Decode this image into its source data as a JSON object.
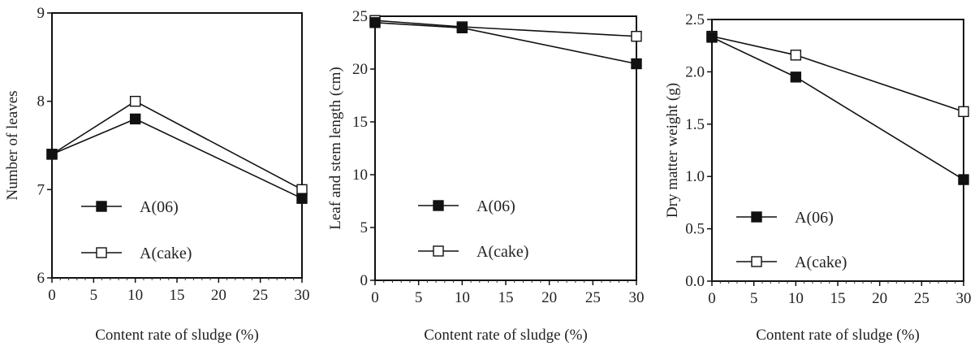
{
  "chart_data": [
    {
      "type": "line",
      "x": [
        0,
        10,
        30
      ],
      "xlim": [
        0,
        30
      ],
      "xticks": [
        "0",
        "5",
        "10",
        "15",
        "20",
        "25",
        "30"
      ],
      "xtick_values": [
        0,
        5,
        10,
        15,
        20,
        25,
        30
      ],
      "ylim": [
        6,
        9
      ],
      "yticks": [
        "6",
        "7",
        "8",
        "9"
      ],
      "ytick_values": [
        6,
        7,
        8,
        9
      ],
      "xlabel": "Content rate of sludge (%)",
      "ylabel": "Number of leaves",
      "legend_position": "bottom-left",
      "series": [
        {
          "name": "A(06)",
          "values": [
            7.4,
            7.8,
            6.9
          ],
          "marker": "filled-square"
        },
        {
          "name": "A(cake)",
          "values": [
            7.4,
            8.0,
            7.0
          ],
          "marker": "open-square"
        }
      ]
    },
    {
      "type": "line",
      "x": [
        0,
        10,
        30
      ],
      "xlim": [
        0,
        30
      ],
      "xticks": [
        "0",
        "5",
        "10",
        "15",
        "20",
        "25",
        "30"
      ],
      "xtick_values": [
        0,
        5,
        10,
        15,
        20,
        25,
        30
      ],
      "ylim": [
        0,
        25
      ],
      "yticks": [
        "0",
        "5",
        "10",
        "15",
        "20",
        "25"
      ],
      "ytick_values": [
        0,
        5,
        10,
        15,
        20,
        25
      ],
      "xlabel": "Content rate of sludge (%)",
      "ylabel": "Leaf and stem length (cm)",
      "legend_position": "bottom-left",
      "series": [
        {
          "name": "A(06)",
          "values": [
            24.4,
            23.9,
            20.5
          ],
          "marker": "filled-square"
        },
        {
          "name": "A(cake)",
          "values": [
            24.6,
            24.0,
            23.1
          ],
          "marker": "open-square"
        }
      ]
    },
    {
      "type": "line",
      "x": [
        0,
        10,
        30
      ],
      "xlim": [
        0,
        30
      ],
      "xticks": [
        "0",
        "5",
        "10",
        "15",
        "20",
        "25",
        "30"
      ],
      "xtick_values": [
        0,
        5,
        10,
        15,
        20,
        25,
        30
      ],
      "ylim": [
        0,
        2.5
      ],
      "yticks": [
        "0.0",
        "0.5",
        "1.0",
        "1.5",
        "2.0",
        "2.5"
      ],
      "ytick_values": [
        0,
        0.5,
        1.0,
        1.5,
        2.0,
        2.5
      ],
      "xlabel": "Content rate of sludge (%)",
      "ylabel": "Dry matter weight (g)",
      "legend_position": "bottom-left",
      "series": [
        {
          "name": "A(06)",
          "values": [
            2.33,
            1.95,
            0.97
          ],
          "marker": "filled-square"
        },
        {
          "name": "A(cake)",
          "values": [
            2.34,
            2.16,
            1.62
          ],
          "marker": "open-square"
        }
      ]
    }
  ]
}
